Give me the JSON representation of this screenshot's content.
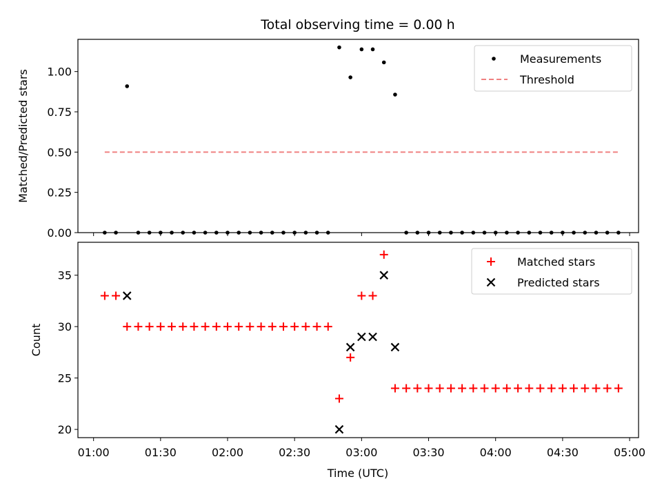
{
  "chart_data": {
    "title": "Total observing time = 0.00 h",
    "xlabel": "Time (UTC)",
    "x_tick_labels": [
      "01:00",
      "01:30",
      "02:00",
      "02:30",
      "03:00",
      "03:30",
      "04:00",
      "04:30",
      "05:00"
    ],
    "x_ticks": [
      "01:00",
      "01:30",
      "02:00",
      "02:30",
      "03:00",
      "03:30",
      "04:00",
      "04:30",
      "05:00"
    ],
    "x_range": [
      "00:53",
      "05:04"
    ],
    "time_points": [
      "01:05",
      "01:10",
      "01:15",
      "01:20",
      "01:25",
      "01:30",
      "01:35",
      "01:40",
      "01:45",
      "01:50",
      "01:55",
      "02:00",
      "02:05",
      "02:10",
      "02:15",
      "02:20",
      "02:25",
      "02:30",
      "02:35",
      "02:40",
      "02:45",
      "02:50",
      "02:55",
      "03:00",
      "03:05",
      "03:10",
      "03:15",
      "03:20",
      "03:25",
      "03:30",
      "03:35",
      "03:40",
      "03:45",
      "03:50",
      "03:55",
      "04:00",
      "04:05",
      "04:10",
      "04:15",
      "04:20",
      "04:25",
      "04:30",
      "04:35",
      "04:40",
      "04:45",
      "04:50",
      "04:55"
    ],
    "panels": [
      {
        "type": "scatter",
        "ylabel": "Matched/Predicted stars",
        "ylim": [
          0,
          1.2
        ],
        "y_ticks": [
          0,
          0.25,
          0.5,
          0.75,
          1.0
        ],
        "y_tick_labels": [
          "0.00",
          "0.25",
          "0.50",
          "0.75",
          "1.00"
        ],
        "legend": "top-right",
        "legend_entries": [
          "Measurements",
          "Threshold"
        ],
        "series": [
          {
            "name": "Measurements",
            "marker": "dot",
            "color": "#000000",
            "values": [
              0,
              0,
              0.909,
              0,
              0,
              0,
              0,
              0,
              0,
              0,
              0,
              0,
              0,
              0,
              0,
              0,
              0,
              0,
              0,
              0,
              0,
              1.15,
              0.964,
              1.138,
              1.138,
              1.057,
              0.857,
              0,
              0,
              0,
              0,
              0,
              0,
              0,
              0,
              0,
              0,
              0,
              0,
              0,
              0,
              0,
              0,
              0,
              0,
              0,
              0
            ]
          },
          {
            "name": "Threshold",
            "style": "dashed",
            "color": "#f08080",
            "x": [
              "01:05",
              "04:55"
            ],
            "values": [
              0.5,
              0.5
            ]
          }
        ]
      },
      {
        "type": "scatter",
        "ylabel": "Count",
        "ylim": [
          19.2,
          38.2
        ],
        "y_ticks": [
          20,
          25,
          30,
          35
        ],
        "y_tick_labels": [
          "20",
          "25",
          "30",
          "35"
        ],
        "legend": "top-right",
        "legend_entries": [
          "Matched stars",
          "Predicted stars"
        ],
        "series": [
          {
            "name": "Matched stars",
            "marker": "plus",
            "color": "#ff0000",
            "values": [
              33,
              33,
              30,
              30,
              30,
              30,
              30,
              30,
              30,
              30,
              30,
              30,
              30,
              30,
              30,
              30,
              30,
              30,
              30,
              30,
              30,
              23,
              27,
              33,
              33,
              37,
              24,
              24,
              24,
              24,
              24,
              24,
              24,
              24,
              24,
              24,
              24,
              24,
              24,
              24,
              24,
              24,
              24,
              24,
              24,
              24,
              24
            ]
          },
          {
            "name": "Predicted stars",
            "marker": "x",
            "color": "#000000",
            "x": [
              "01:15",
              "02:50",
              "02:55",
              "03:00",
              "03:05",
              "03:10",
              "03:15"
            ],
            "values": [
              33,
              20,
              28,
              29,
              29,
              35,
              28
            ]
          }
        ]
      }
    ]
  }
}
